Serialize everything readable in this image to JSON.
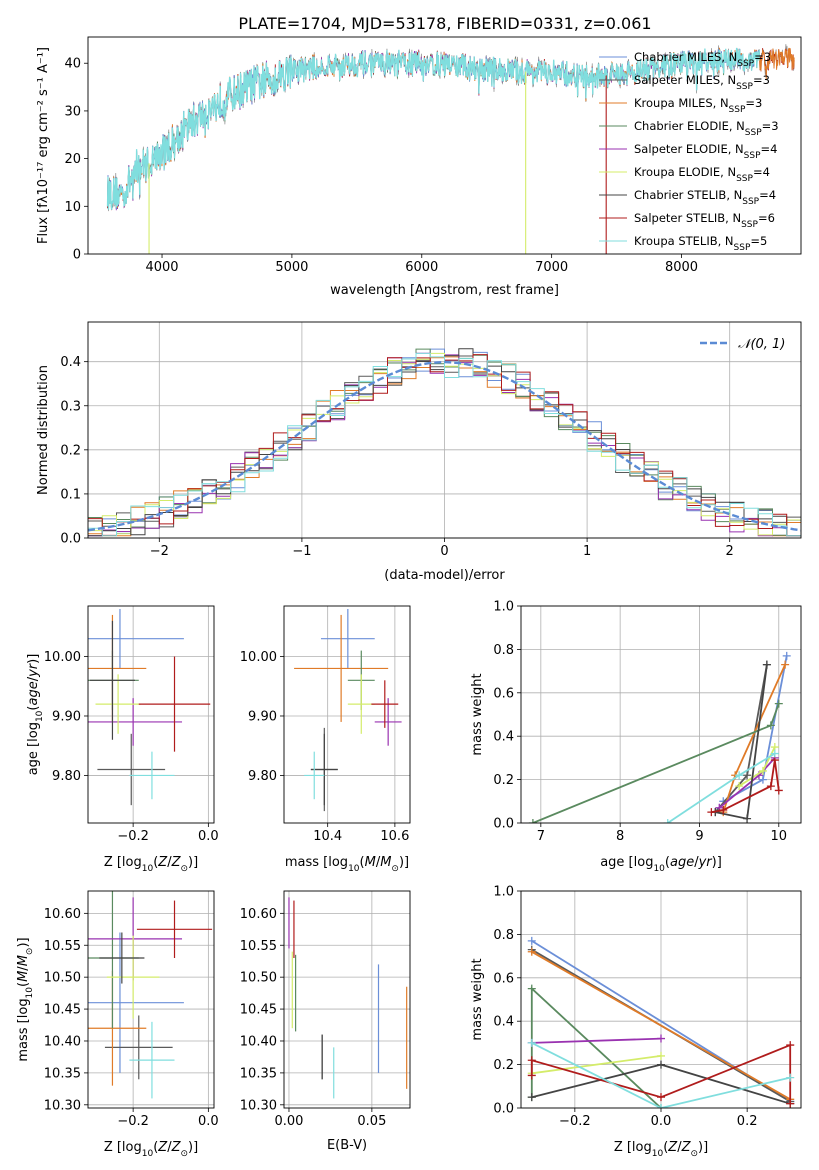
{
  "figure": {
    "title": "PLATE=1704, MJD=53178, FIBERID=0331, z=0.061"
  },
  "series": [
    {
      "name": "Chabrier MILES",
      "nssp": "3",
      "color": "#6b8fd8"
    },
    {
      "name": "Salpeter MILES",
      "nssp": "3",
      "color": "#5a5a5a"
    },
    {
      "name": "Kroupa MILES",
      "nssp": "3",
      "color": "#e07b28"
    },
    {
      "name": "Chabrier ELODIE",
      "nssp": "3",
      "color": "#5a8a5f"
    },
    {
      "name": "Salpeter ELODIE",
      "nssp": "4",
      "color": "#9932b0"
    },
    {
      "name": "Kroupa ELODIE",
      "nssp": "4",
      "color": "#d4ec6a"
    },
    {
      "name": "Chabrier STELIB",
      "nssp": "4",
      "color": "#444444"
    },
    {
      "name": "Salpeter STELIB",
      "nssp": "6",
      "color": "#b01c1c"
    },
    {
      "name": "Kroupa STELIB",
      "nssp": "5",
      "color": "#80dede"
    }
  ],
  "chart_data": [
    {
      "id": "spectrum",
      "type": "line",
      "xlabel": "wavelength [Angstrom, rest frame]",
      "ylabel": "Flux [fλ10⁻¹⁷ erg cm⁻² s⁻¹ A⁻¹]",
      "xlim": [
        3430,
        8920
      ],
      "ylim": [
        0,
        45.5
      ],
      "xticks": [
        4000,
        5000,
        6000,
        7000,
        8000
      ],
      "yticks": [
        0,
        10,
        20,
        30,
        40
      ],
      "continuum": {
        "x": [
          3600,
          3700,
          3800,
          3900,
          4000,
          4100,
          4200,
          4300,
          4400,
          4500,
          4700,
          5000,
          5300,
          5600,
          6000,
          6300,
          6600,
          7000,
          7300,
          7600,
          8000,
          8400,
          8800
        ],
        "y": [
          13,
          12.5,
          18,
          19,
          21,
          24,
          27,
          29,
          31,
          33,
          35.5,
          38.5,
          39.5,
          40,
          40,
          39.5,
          38.5,
          38,
          37,
          38,
          40,
          40.5,
          41
        ]
      },
      "drops": [
        {
          "series": "Kroupa ELODIE",
          "x": 3900
        },
        {
          "series": "Kroupa ELODIE",
          "x": 6800
        },
        {
          "series": "Salpeter STELIB",
          "x": 7420
        }
      ]
    },
    {
      "id": "residuals",
      "type": "line",
      "xlabel": "(data-model)/error",
      "ylabel": "Normed distribution",
      "xlim": [
        -2.5,
        2.5
      ],
      "ylim": [
        0,
        0.49
      ],
      "xticks": [
        -2,
        -1,
        0,
        1,
        2
      ],
      "yticks": [
        0.0,
        0.1,
        0.2,
        0.3,
        0.4
      ],
      "grid": true,
      "reference_curve": {
        "label": "𝒩(0, 1)",
        "mean": 0,
        "sigma": 1,
        "color": "#5b8bd4"
      },
      "legend": "top-right"
    },
    {
      "id": "z_age",
      "type": "scatter",
      "xlabel": "Z [log₁₀(Z/Z⊙)]",
      "ylabel": "age  [log₁₀(age/yr)]",
      "xlim": [
        -0.32,
        0.015
      ],
      "ylim": [
        9.72,
        10.085
      ],
      "xticks": [
        -0.2,
        0.0
      ],
      "yticks": [
        9.8,
        9.9,
        10.0
      ],
      "grid": true,
      "points": [
        {
          "series": "Chabrier MILES",
          "x": -0.235,
          "y": 10.03,
          "xerr": 0.17,
          "yerr": 0.05
        },
        {
          "series": "Salpeter MILES",
          "x": -0.205,
          "y": 9.81,
          "xerr": 0.09,
          "yerr": 0.06
        },
        {
          "series": "Kroupa MILES",
          "x": -0.255,
          "y": 9.98,
          "xerr": 0.09,
          "yerr": 0.09
        },
        {
          "series": "Chabrier ELODIE",
          "x": -0.255,
          "y": 9.96,
          "xerr": 0.07,
          "yerr": 0.05
        },
        {
          "series": "Salpeter ELODIE",
          "x": -0.2,
          "y": 9.89,
          "xerr": 0.13,
          "yerr": 0.04
        },
        {
          "series": "Kroupa ELODIE",
          "x": -0.24,
          "y": 9.92,
          "xerr": 0.06,
          "yerr": 0.05
        },
        {
          "series": "Chabrier STELIB",
          "x": -0.255,
          "y": 9.96,
          "xerr": 0.06,
          "yerr": 0.1
        },
        {
          "series": "Salpeter STELIB",
          "x": -0.09,
          "y": 9.92,
          "xerr": 0.095,
          "yerr": 0.08
        },
        {
          "series": "Kroupa STELIB",
          "x": -0.15,
          "y": 9.8,
          "xerr": 0.06,
          "yerr": 0.04
        }
      ]
    },
    {
      "id": "mass_age",
      "type": "scatter",
      "xlabel": "mass [log₁₀(M/M⊙)]",
      "ylabel": "",
      "xlim": [
        10.27,
        10.645
      ],
      "ylim": [
        9.72,
        10.085
      ],
      "xticks": [
        10.4,
        10.6
      ],
      "yticks": [
        9.8,
        9.9,
        10.0
      ],
      "grid": true,
      "points": [
        {
          "series": "Chabrier MILES",
          "x": 10.46,
          "y": 10.03,
          "xerr": 0.08,
          "yerr": 0.05
        },
        {
          "series": "Salpeter MILES",
          "x": 10.39,
          "y": 9.81,
          "xerr": 0.04,
          "yerr": 0.07
        },
        {
          "series": "Kroupa MILES",
          "x": 10.44,
          "y": 9.98,
          "xerr": 0.14,
          "yerr": 0.09
        },
        {
          "series": "Chabrier ELODIE",
          "x": 10.5,
          "y": 9.96,
          "xerr": 0.04,
          "yerr": 0.05
        },
        {
          "series": "Salpeter ELODIE",
          "x": 10.58,
          "y": 9.89,
          "xerr": 0.04,
          "yerr": 0.04
        },
        {
          "series": "Kroupa ELODIE",
          "x": 10.5,
          "y": 9.92,
          "xerr": 0.04,
          "yerr": 0.05
        },
        {
          "series": "Chabrier STELIB",
          "x": 10.39,
          "y": 9.81,
          "xerr": 0.04,
          "yerr": 0.06
        },
        {
          "series": "Salpeter STELIB",
          "x": 10.57,
          "y": 9.92,
          "xerr": 0.04,
          "yerr": 0.04
        },
        {
          "series": "Kroupa STELIB",
          "x": 10.36,
          "y": 9.8,
          "xerr": 0.03,
          "yerr": 0.04
        }
      ]
    },
    {
      "id": "age_weight",
      "type": "line",
      "xlabel": "age  [log₁₀(age/yr)]",
      "ylabel": "mass weight",
      "xlim": [
        6.75,
        10.28
      ],
      "ylim": [
        0,
        1.0
      ],
      "xticks": [
        7,
        8,
        9,
        10
      ],
      "yticks": [
        0.0,
        0.2,
        0.4,
        0.6,
        0.8,
        1.0
      ],
      "grid": true,
      "lines": [
        {
          "series": "Chabrier MILES",
          "x": [
            9.3,
            9.8,
            10.1
          ],
          "y": [
            0.1,
            0.2,
            0.77
          ]
        },
        {
          "series": "Salpeter MILES",
          "x": [
            9.2,
            9.6,
            9.85
          ],
          "y": [
            0.05,
            0.22,
            0.73
          ]
        },
        {
          "series": "Kroupa MILES",
          "x": [
            9.3,
            9.45,
            10.08
          ],
          "y": [
            0.05,
            0.22,
            0.73
          ]
        },
        {
          "series": "Chabrier ELODIE",
          "x": [
            6.9,
            9.9,
            10.0
          ],
          "y": [
            0.0,
            0.45,
            0.55
          ]
        },
        {
          "series": "Salpeter ELODIE",
          "x": [
            9.25,
            9.75,
            9.95
          ],
          "y": [
            0.07,
            0.22,
            0.3
          ]
        },
        {
          "series": "Kroupa ELODIE",
          "x": [
            9.5,
            9.8,
            9.95
          ],
          "y": [
            0.17,
            0.24,
            0.35
          ]
        },
        {
          "series": "Chabrier STELIB",
          "x": [
            9.2,
            9.6,
            9.85
          ],
          "y": [
            0.05,
            0.02,
            0.73
          ]
        },
        {
          "series": "Salpeter STELIB",
          "x": [
            9.15,
            9.3,
            9.9,
            9.95,
            10.0
          ],
          "y": [
            0.05,
            0.06,
            0.17,
            0.29,
            0.15
          ]
        },
        {
          "series": "Kroupa STELIB",
          "x": [
            8.6,
            9.5,
            9.95
          ],
          "y": [
            0.0,
            0.22,
            0.32
          ]
        }
      ]
    },
    {
      "id": "z_mass",
      "type": "scatter",
      "xlabel": "Z [log₁₀(Z/Z⊙)]",
      "ylabel": "mass [log₁₀(M/M⊙)]",
      "xlim": [
        -0.32,
        0.015
      ],
      "ylim": [
        10.295,
        10.635
      ],
      "xticks": [
        -0.2,
        0.0
      ],
      "yticks": [
        10.3,
        10.35,
        10.4,
        10.45,
        10.5,
        10.55,
        10.6
      ],
      "grid": true,
      "points": [
        {
          "series": "Chabrier MILES",
          "x": -0.235,
          "y": 10.46,
          "xerr": 0.17,
          "yerr": 0.11
        },
        {
          "series": "Salpeter MILES",
          "x": -0.185,
          "y": 10.39,
          "xerr": 0.09,
          "yerr": 0.05
        },
        {
          "series": "Kroupa MILES",
          "x": -0.255,
          "y": 10.42,
          "xerr": 0.09,
          "yerr": 0.09
        },
        {
          "series": "Chabrier ELODIE",
          "x": -0.255,
          "y": 10.53,
          "xerr": 0.07,
          "yerr": 0.11
        },
        {
          "series": "Salpeter ELODIE",
          "x": -0.2,
          "y": 10.56,
          "xerr": 0.13,
          "yerr": 0.065
        },
        {
          "series": "Kroupa ELODIE",
          "x": -0.2,
          "y": 10.5,
          "xerr": 0.07,
          "yerr": 0.065
        },
        {
          "series": "Chabrier STELIB",
          "x": -0.23,
          "y": 10.53,
          "xerr": 0.06,
          "yerr": 0.04
        },
        {
          "series": "Salpeter STELIB",
          "x": -0.09,
          "y": 10.575,
          "xerr": 0.1,
          "yerr": 0.045
        },
        {
          "series": "Kroupa STELIB",
          "x": -0.15,
          "y": 10.37,
          "xerr": 0.06,
          "yerr": 0.06
        }
      ]
    },
    {
      "id": "ebv_mass",
      "type": "scatter",
      "xlabel": "E(B-V)",
      "ylabel": "",
      "xlim": [
        -0.003,
        0.073
      ],
      "ylim": [
        10.295,
        10.635
      ],
      "xticks": [
        0.0,
        0.05
      ],
      "yticks": [
        10.3,
        10.35,
        10.4,
        10.45,
        10.5,
        10.55,
        10.6
      ],
      "grid": true,
      "points": [
        {
          "series": "Chabrier MILES",
          "x": 0.054,
          "y": 10.435,
          "yerr": 0.085
        },
        {
          "series": "Salpeter MILES",
          "x": 0.02,
          "y": 10.375,
          "yerr": 0.035
        },
        {
          "series": "Kroupa MILES",
          "x": 0.071,
          "y": 10.405,
          "yerr": 0.08
        },
        {
          "series": "Chabrier ELODIE",
          "x": 0.004,
          "y": 10.475,
          "yerr": 0.06
        },
        {
          "series": "Salpeter ELODIE",
          "x": 0.0,
          "y": 10.585,
          "yerr": 0.04
        },
        {
          "series": "Kroupa ELODIE",
          "x": 0.002,
          "y": 10.48,
          "yerr": 0.06
        },
        {
          "series": "Chabrier STELIB",
          "x": 0.02,
          "y": 10.375,
          "yerr": 0.035
        },
        {
          "series": "Salpeter STELIB",
          "x": 0.003,
          "y": 10.575,
          "yerr": 0.045
        },
        {
          "series": "Kroupa STELIB",
          "x": 0.027,
          "y": 10.35,
          "yerr": 0.04
        }
      ]
    },
    {
      "id": "z_weight",
      "type": "line",
      "xlabel": "Z [log₁₀(Z/Z⊙)]",
      "ylabel": "mass weight",
      "xlim": [
        -0.325,
        0.325
      ],
      "ylim": [
        0,
        1.0
      ],
      "xticks": [
        -0.2,
        0.0,
        0.2
      ],
      "yticks": [
        0.0,
        0.2,
        0.4,
        0.6,
        0.8,
        1.0
      ],
      "grid": true,
      "lines": [
        {
          "series": "Chabrier MILES",
          "x": [
            -0.3,
            0.3
          ],
          "y": [
            0.77,
            0.03
          ]
        },
        {
          "series": "Salpeter MILES",
          "x": [
            -0.3,
            0.3
          ],
          "y": [
            0.73,
            0.03
          ]
        },
        {
          "series": "Kroupa MILES",
          "x": [
            -0.3,
            0.3
          ],
          "y": [
            0.72,
            0.04
          ]
        },
        {
          "series": "Chabrier ELODIE",
          "x": [
            -0.3,
            -0.3,
            0.0
          ],
          "y": [
            0.05,
            0.55,
            0.0
          ]
        },
        {
          "series": "Salpeter ELODIE",
          "x": [
            -0.3,
            0.0
          ],
          "y": [
            0.3,
            0.32
          ]
        },
        {
          "series": "Kroupa ELODIE",
          "x": [
            -0.3,
            0.0
          ],
          "y": [
            0.16,
            0.24
          ]
        },
        {
          "series": "Chabrier STELIB",
          "x": [
            -0.3,
            0.0,
            0.3
          ],
          "y": [
            0.05,
            0.2,
            0.02
          ]
        },
        {
          "series": "Salpeter STELIB",
          "x": [
            -0.3,
            -0.3,
            0.0,
            0.3,
            0.3
          ],
          "y": [
            0.15,
            0.22,
            0.05,
            0.29,
            0.02
          ]
        },
        {
          "series": "Kroupa STELIB",
          "x": [
            -0.3,
            0.0,
            0.3
          ],
          "y": [
            0.3,
            0.0,
            0.14
          ]
        }
      ]
    }
  ]
}
